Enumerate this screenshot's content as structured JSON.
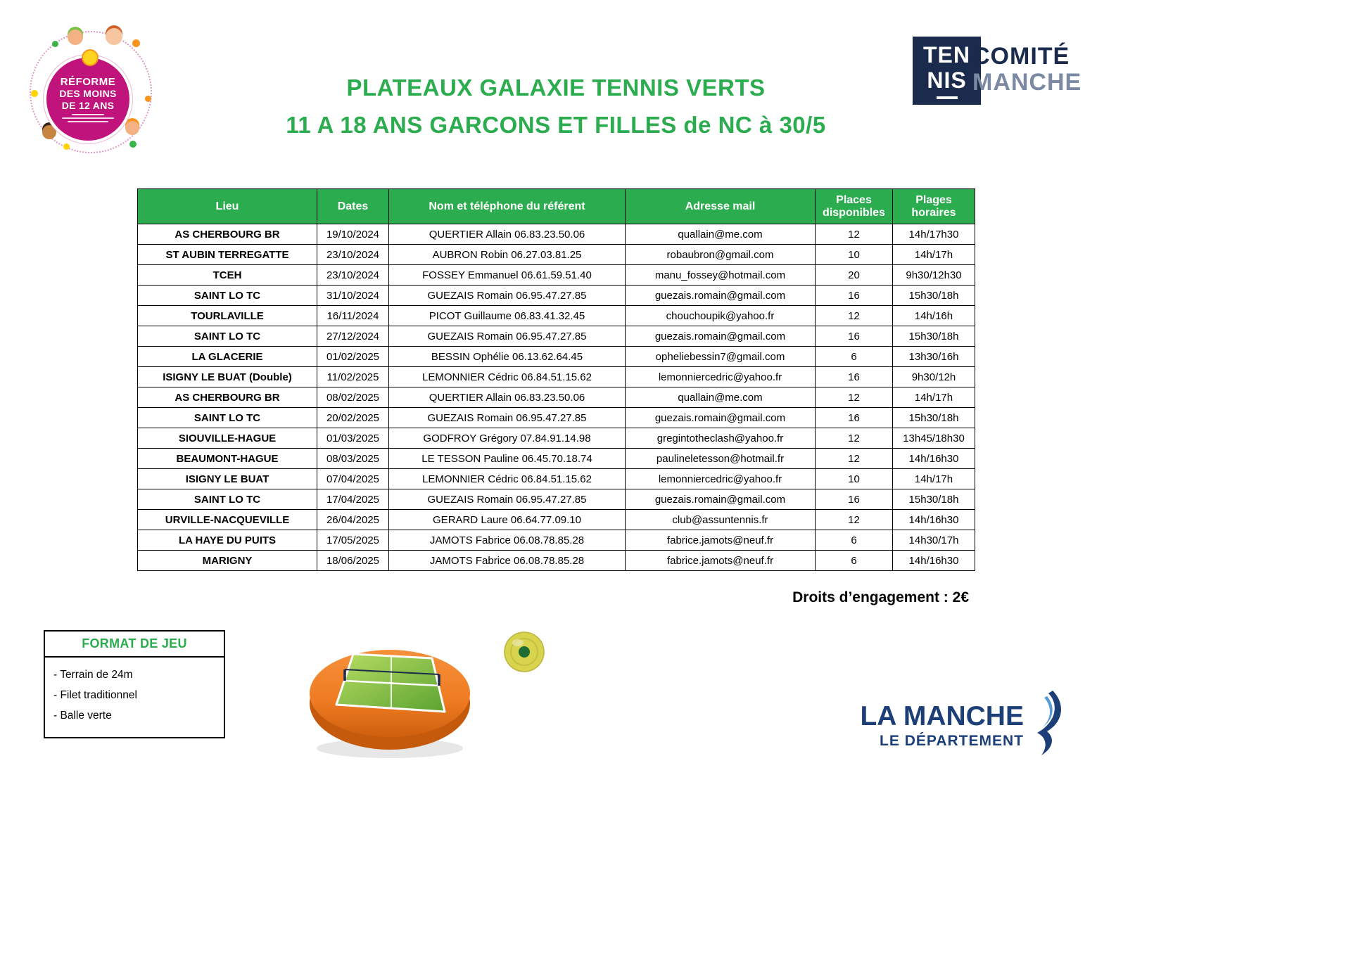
{
  "header": {
    "reform_logo": {
      "line1": "RÉFORME",
      "line2": "DES MOINS",
      "line3": "DE 12 ANS"
    },
    "tennis_logo": {
      "top": "TEN",
      "bottom": "NIS"
    },
    "comite": {
      "line1": "COMITÉ",
      "line2": "MANCHE"
    }
  },
  "titles": {
    "line1": "PLATEAUX GALAXIE TENNIS VERTS",
    "line2": "11 A 18 ANS GARCONS ET FILLES de NC à 30/5"
  },
  "table": {
    "headers": [
      "Lieu",
      "Dates",
      "Nom et téléphone du référent",
      "Adresse mail",
      "Places disponibles",
      "Plages horaires"
    ],
    "column_keys": [
      "lieu",
      "dates",
      "referent",
      "mail",
      "places",
      "horaires"
    ],
    "rows": [
      [
        "AS CHERBOURG BR",
        "19/10/2024",
        "QUERTIER Allain 06.83.23.50.06",
        "quallain@me.com",
        "12",
        "14h/17h30"
      ],
      [
        "ST AUBIN TERREGATTE",
        "23/10/2024",
        "AUBRON Robin 06.27.03.81.25",
        "robaubron@gmail.com",
        "10",
        "14h/17h"
      ],
      [
        "TCEH",
        "23/10/2024",
        "FOSSEY Emmanuel 06.61.59.51.40",
        "manu_fossey@hotmail.com",
        "20",
        "9h30/12h30"
      ],
      [
        "SAINT LO TC",
        "31/10/2024",
        "GUEZAIS Romain 06.95.47.27.85",
        "guezais.romain@gmail.com",
        "16",
        "15h30/18h"
      ],
      [
        "TOURLAVILLE",
        "16/11/2024",
        "PICOT Guillaume 06.83.41.32.45",
        "chouchoupik@yahoo.fr",
        "12",
        "14h/16h"
      ],
      [
        "SAINT LO TC",
        "27/12/2024",
        "GUEZAIS Romain 06.95.47.27.85",
        "guezais.romain@gmail.com",
        "16",
        "15h30/18h"
      ],
      [
        "LA GLACERIE",
        "01/02/2025",
        "BESSIN Ophélie 06.13.62.64.45",
        "opheliebessin7@gmail.com",
        "6",
        "13h30/16h"
      ],
      [
        "ISIGNY LE BUAT (Double)",
        "11/02/2025",
        "LEMONNIER Cédric 06.84.51.15.62",
        "lemonniercedric@yahoo.fr",
        "16",
        "9h30/12h"
      ],
      [
        "AS CHERBOURG BR",
        "08/02/2025",
        "QUERTIER Allain 06.83.23.50.06",
        "quallain@me.com",
        "12",
        "14h/17h"
      ],
      [
        "SAINT LO TC",
        "20/02/2025",
        "GUEZAIS Romain 06.95.47.27.85",
        "guezais.romain@gmail.com",
        "16",
        "15h30/18h"
      ],
      [
        "SIOUVILLE-HAGUE",
        "01/03/2025",
        "GODFROY Grégory 07.84.91.14.98",
        "gregintotheclash@yahoo.fr",
        "12",
        "13h45/18h30"
      ],
      [
        "BEAUMONT-HAGUE",
        "08/03/2025",
        "LE TESSON Pauline 06.45.70.18.74",
        "paulineletesson@hotmail.fr",
        "12",
        "14h/16h30"
      ],
      [
        "ISIGNY LE BUAT",
        "07/04/2025",
        "LEMONNIER Cédric 06.84.51.15.62",
        "lemonniercedric@yahoo.fr",
        "10",
        "14h/17h"
      ],
      [
        "SAINT LO TC",
        "17/04/2025",
        "GUEZAIS Romain 06.95.47.27.85",
        "guezais.romain@gmail.com",
        "16",
        "15h30/18h"
      ],
      [
        "URVILLE-NACQUEVILLE",
        "26/04/2025",
        "GERARD Laure 06.64.77.09.10",
        "club@assuntennis.fr",
        "12",
        "14h/16h30"
      ],
      [
        "LA HAYE DU PUITS",
        "17/05/2025",
        "JAMOTS Fabrice 06.08.78.85.28",
        "fabrice.jamots@neuf.fr",
        "6",
        "14h30/17h"
      ],
      [
        "MARIGNY",
        "18/06/2025",
        "JAMOTS Fabrice 06.08.78.85.28",
        "fabrice.jamots@neuf.fr",
        "6",
        "14h/16h30"
      ]
    ]
  },
  "fees_note": "Droits d’engagement : 2€",
  "format_box": {
    "title": "FORMAT DE JEU",
    "items": [
      "- Terrain de 24m",
      "- Filet traditionnel",
      "- Balle verte"
    ]
  },
  "footer_logo": {
    "line1": "LA MANCHE",
    "line2": "LE DÉPARTEMENT"
  },
  "colors": {
    "green": "#2bac4e",
    "navy": "#1b2b4d",
    "comite_gray": "#7b8aa2",
    "magenta": "#c0147c",
    "footer_navy": "#1c3f77",
    "disc_orange": "#ee7b22",
    "court_green": "#8cc63f",
    "ball_yellow": "#d8d44e"
  }
}
